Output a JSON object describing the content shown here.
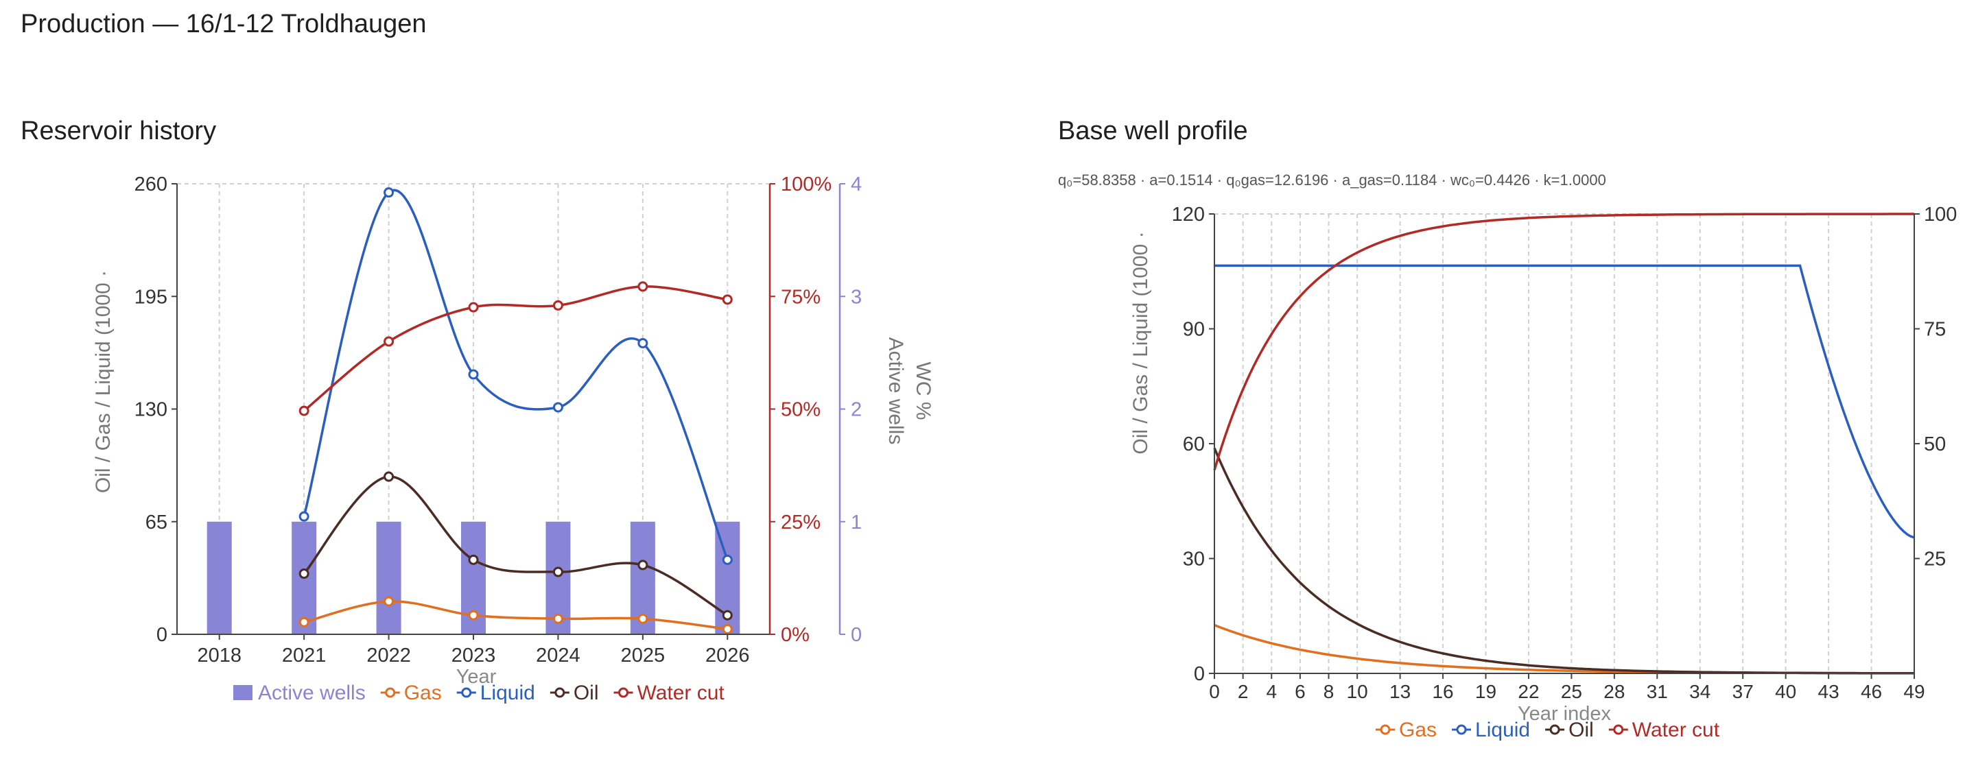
{
  "page": {
    "title": "Production — 16/1-12 Troldhaugen"
  },
  "panels": {
    "left_title": "Reservoir history",
    "right_title": "Base well profile",
    "right_params": "q₀=58.8358 · a=0.1514 · q₀gas=12.6196 · a_gas=0.1184 · wc₀=0.4426 · k=1.0000"
  },
  "colors": {
    "active_wells": "#8985d6",
    "gas": "#e07020",
    "liquid": "#2a5fbf",
    "oil": "#4a2c24",
    "water_cut": "#b22a25",
    "wells_axis": "#8985d6",
    "grid": "#d0d0d0"
  },
  "chart_data": [
    {
      "type": "bar+line",
      "title": "Reservoir history",
      "xlabel": "Year",
      "ylabel": "Oil / Gas / Liquid (1000 ·",
      "y2label": "WC %",
      "y3label": "Active wells",
      "categories": [
        "2018",
        "2021",
        "2022",
        "2023",
        "2024",
        "2025",
        "2026"
      ],
      "ylim": [
        0,
        260
      ],
      "yticks": [
        "0",
        "65",
        "130",
        "195",
        "260"
      ],
      "y2lim": [
        0,
        100
      ],
      "y2ticks": [
        "0%",
        "25%",
        "50%",
        "75%",
        "100%"
      ],
      "y3lim": [
        0,
        4
      ],
      "y3ticks": [
        "0",
        "1",
        "2",
        "3",
        "4"
      ],
      "grid": true,
      "legend_position": "bottom",
      "series": [
        {
          "name": "Active wells",
          "kind": "bar",
          "axis": "wells",
          "values": [
            1,
            1,
            1,
            1,
            1,
            1,
            1
          ]
        },
        {
          "name": "Gas",
          "kind": "line",
          "axis": "left",
          "values": [
            null,
            7,
            19,
            11,
            9,
            9,
            3
          ]
        },
        {
          "name": "Liquid",
          "kind": "line",
          "axis": "left",
          "values": [
            null,
            68,
            255,
            150,
            131,
            168,
            43
          ]
        },
        {
          "name": "Oil",
          "kind": "line",
          "axis": "left",
          "values": [
            null,
            35,
            91,
            43,
            36,
            40,
            11
          ]
        },
        {
          "name": "Water cut",
          "kind": "line",
          "axis": "wc",
          "values": [
            null,
            49.6,
            65,
            72.6,
            73,
            77.2,
            74.3
          ]
        }
      ]
    },
    {
      "type": "line",
      "title": "Base well profile",
      "xlabel": "Year index",
      "ylabel": "Oil / Gas / Liquid (1000 ·",
      "xticks": [
        "0",
        "2",
        "4",
        "6",
        "8",
        "10",
        "13",
        "16",
        "19",
        "22",
        "25",
        "28",
        "31",
        "34",
        "37",
        "40",
        "43",
        "46",
        "49"
      ],
      "xlim": [
        0,
        49
      ],
      "ylim": [
        0,
        120
      ],
      "yticks": [
        "0",
        "30",
        "60",
        "90",
        "120"
      ],
      "y2lim": [
        0,
        100
      ],
      "y2ticks": [
        "25",
        "50",
        "75",
        "100"
      ],
      "grid": true,
      "legend_position": "bottom",
      "model": {
        "q0": 58.8358,
        "a": 0.1514,
        "q0gas": 12.6196,
        "a_gas": 0.1184,
        "wc0": 0.4426,
        "k": 1.0,
        "liquid_plateau": 106.5,
        "plateau_end": 41,
        "liquid_end": 35.5
      },
      "series": [
        {
          "name": "Gas",
          "axis": "left"
        },
        {
          "name": "Liquid",
          "axis": "left"
        },
        {
          "name": "Oil",
          "axis": "left"
        },
        {
          "name": "Water cut",
          "axis": "right"
        }
      ]
    }
  ]
}
